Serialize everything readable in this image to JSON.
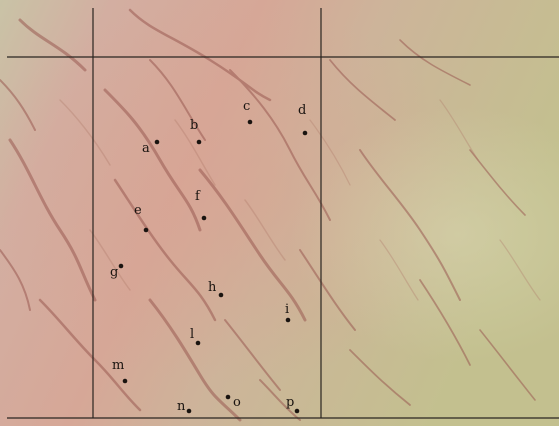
{
  "image": {
    "palette": {
      "tissue_pink": "#d4a89a",
      "tissue_green": "#c2bf8e",
      "vessel": "#9a5a52",
      "grid_line": "#2a2520",
      "marker": "#1a1410"
    },
    "markers": [
      {
        "label": "a"
      },
      {
        "label": "b"
      },
      {
        "label": "c"
      },
      {
        "label": "d"
      },
      {
        "label": "e"
      },
      {
        "label": "f"
      },
      {
        "label": "g"
      },
      {
        "label": "h"
      },
      {
        "label": "i"
      },
      {
        "label": "l"
      },
      {
        "label": "m"
      },
      {
        "label": "n"
      },
      {
        "label": "o"
      },
      {
        "label": "p"
      }
    ]
  }
}
